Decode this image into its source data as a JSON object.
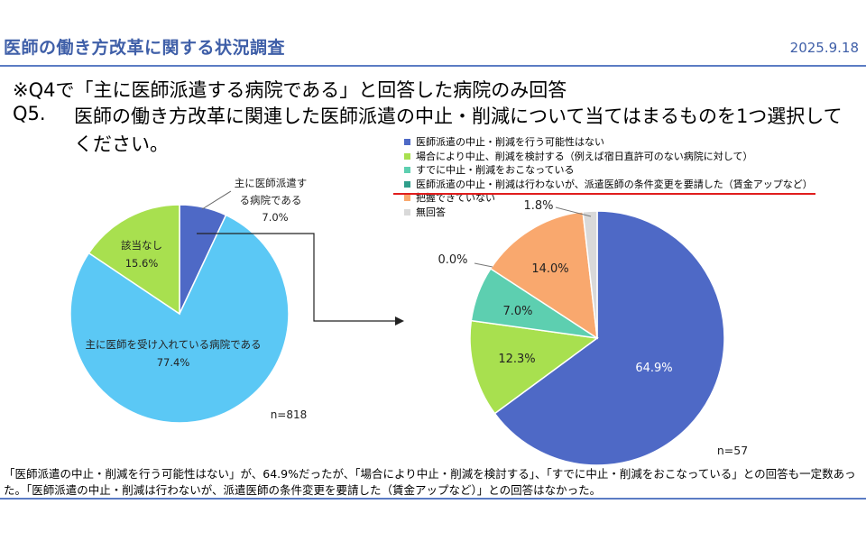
{
  "header": {
    "title": "医師の働き方改革に関する状況調査",
    "date": "2025.9.18"
  },
  "question": {
    "note": "※Q4で「主に医師派遣する病院である」と回答した病院のみ回答",
    "number": "Q5.",
    "text": "医師の働き方改革に関連した医師派遣の中止・削減について当てはまるものを1つ選択してください。"
  },
  "chart_data": [
    {
      "type": "pie",
      "categories": [
        "主に医師派遣する病院である",
        "主に医師を受け入れている病院である",
        "該当なし"
      ],
      "values": [
        7.0,
        77.4,
        15.6
      ],
      "value_labels": [
        "7.0%",
        "77.4%",
        "15.6%"
      ],
      "colors": [
        "#4e69c6",
        "#5bc8f5",
        "#a8e04f"
      ],
      "n_label": "n=818"
    },
    {
      "type": "pie",
      "categories": [
        "医師派遣の中止・削減を行う可能性はない",
        "場合により中止、削減を検討する（例えば宿日直許可のない病院に対して）",
        "すでに中止・削減をおこなっている",
        "医師派遣の中止・削減は行わないが、派遣医師の条件変更を要請した（賃金アップなど）",
        "把握できていない",
        "無回答"
      ],
      "values": [
        64.9,
        12.3,
        7.0,
        0.0,
        14.0,
        1.8
      ],
      "value_labels": [
        "64.9%",
        "12.3%",
        "7.0%",
        "0.0%",
        "14.0%",
        "1.8%"
      ],
      "colors": [
        "#4e69c6",
        "#a8e04f",
        "#5dcfb0",
        "#2f9e8a",
        "#f9a86e",
        "#d9d9d9"
      ],
      "legend_position": "top",
      "n_label": "n=57"
    }
  ],
  "caption": "「医師派遣の中止・削減を行う可能性はない」が、64.9%だったが、「場合により中止・削減を検討する」、「すでに中止・削減をおこなっている」との回答も一定数あった。「医師派遣の中止・削減は行わないが、派遣医師の条件変更を要請した（賃金アップなど）」との回答はなかった。"
}
